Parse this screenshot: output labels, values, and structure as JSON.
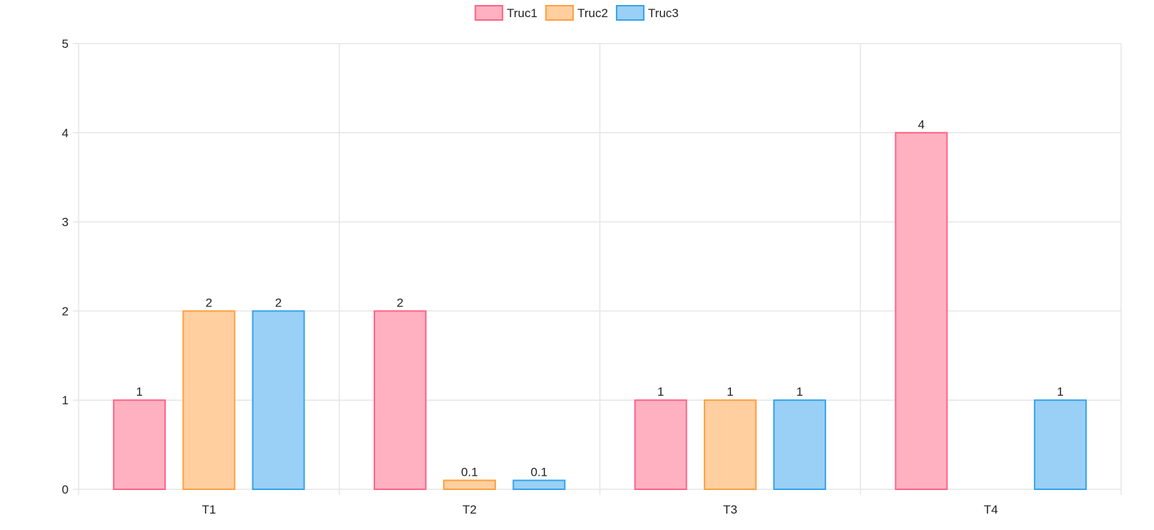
{
  "chart_data": {
    "type": "bar",
    "title": "",
    "xlabel": "",
    "ylabel": "",
    "categories": [
      "T1",
      "T2",
      "T3",
      "T4"
    ],
    "series": [
      {
        "name": "Truc1",
        "values": [
          1,
          2,
          1,
          4
        ],
        "labels": [
          "1",
          "2",
          "1",
          "4"
        ],
        "fill": "#ffb1c1",
        "stroke": "#ff6384"
      },
      {
        "name": "Truc2",
        "values": [
          2,
          0.1,
          1,
          null
        ],
        "labels": [
          "2",
          "0.1",
          "1",
          ""
        ],
        "fill": "#ffcf9f",
        "stroke": "#ff9f40"
      },
      {
        "name": "Truc3",
        "values": [
          2,
          0.1,
          1,
          1
        ],
        "labels": [
          "2",
          "0.1",
          "1",
          "1"
        ],
        "fill": "#9ad0f5",
        "stroke": "#36a2eb"
      }
    ],
    "ylim": [
      0,
      5
    ],
    "yticks": [
      "0",
      "1",
      "2",
      "3",
      "4",
      "5"
    ],
    "grid": true,
    "legend_position": "top-center"
  }
}
